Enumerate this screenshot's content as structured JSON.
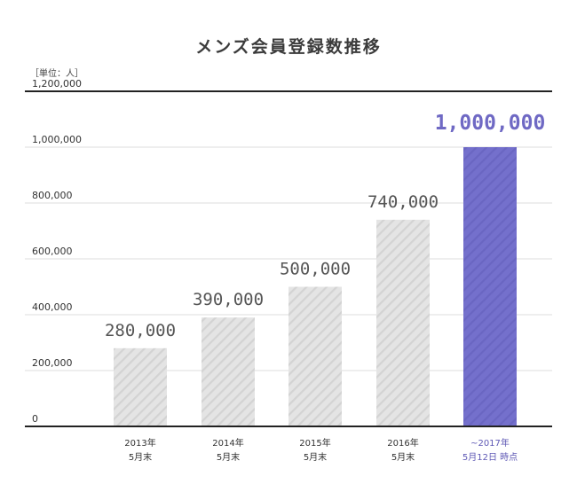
{
  "chart_data": {
    "type": "bar",
    "title": "メンズ会員登録数推移",
    "unit_label": "［単位：人］",
    "ylim": [
      0,
      1200000
    ],
    "yticks": [
      {
        "value": 0,
        "label": "0"
      },
      {
        "value": 200000,
        "label": "200,000"
      },
      {
        "value": 400000,
        "label": "400,000"
      },
      {
        "value": 600000,
        "label": "600,000"
      },
      {
        "value": 800000,
        "label": "800,000"
      },
      {
        "value": 1000000,
        "label": "1,000,000"
      },
      {
        "value": 1200000,
        "label": "1,200,000"
      }
    ],
    "categories": [
      {
        "line1": "2013年",
        "line2": "5月末"
      },
      {
        "line1": "2014年",
        "line2": "5月末"
      },
      {
        "line1": "2015年",
        "line2": "5月末"
      },
      {
        "line1": "2016年",
        "line2": "5月末"
      },
      {
        "line1": "~2017年",
        "line2": "5月12日 時点"
      }
    ],
    "values": [
      280000,
      390000,
      500000,
      740000,
      1000000
    ],
    "value_labels": [
      "280,000",
      "390,000",
      "500,000",
      "740,000",
      "1,000,000"
    ],
    "highlight_index": 4,
    "colors": {
      "bar": "#e4e4e4",
      "bar_stripe": "#d2d2d2",
      "highlight": "#7470cc",
      "highlight_stripe": "#6a66c2",
      "highlight_text": "#6f69c4",
      "axis": "#222222",
      "grid": "#dcdcdc"
    },
    "grid": true
  }
}
